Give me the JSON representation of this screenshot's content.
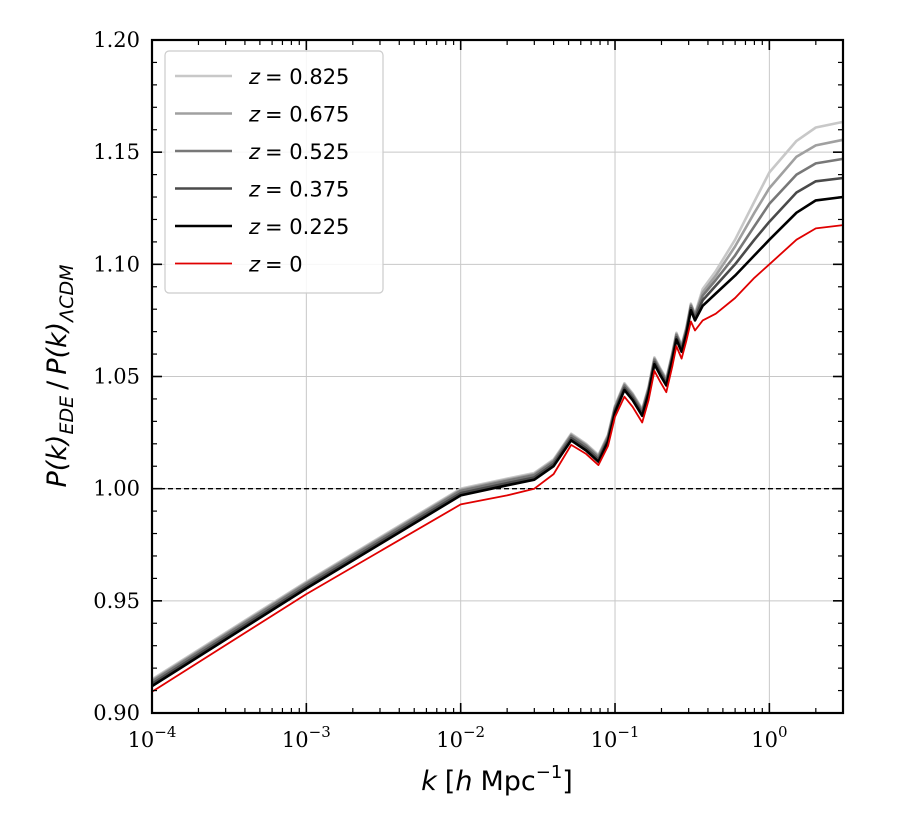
{
  "chart_data": {
    "type": "line",
    "xscale": "log",
    "xlim": [
      0.0001,
      3.0
    ],
    "ylim": [
      0.9,
      1.2
    ],
    "xlabel": {
      "base": "k",
      "bracket_open": "[",
      "unit_h": "h",
      "unit_mpc": "Mpc",
      "exponent": "−1",
      "bracket_close": "]"
    },
    "ylabel": {
      "num": "P(k)",
      "num_sub": "EDE",
      "slash": "/",
      "den": "P(k)",
      "den_sub": "ΛCDM"
    },
    "x_ticks": [
      {
        "value": 0.0001,
        "base": "10",
        "exp": "−4"
      },
      {
        "value": 0.001,
        "base": "10",
        "exp": "−3"
      },
      {
        "value": 0.01,
        "base": "10",
        "exp": "−2"
      },
      {
        "value": 0.1,
        "base": "10",
        "exp": "−1"
      },
      {
        "value": 1,
        "base": "10",
        "exp": "0"
      }
    ],
    "y_ticks": [
      "0.90",
      "0.95",
      "1.00",
      "1.05",
      "1.10",
      "1.15",
      "1.20"
    ],
    "y_tick_values": [
      0.9,
      0.95,
      1.0,
      1.05,
      1.1,
      1.15,
      1.2
    ],
    "grid": true,
    "reference_line": {
      "y": 1.0,
      "style": "dashed",
      "color": "#000000"
    },
    "legend": {
      "position": "top-left",
      "entries": [
        {
          "prefix": "z",
          "value": "= 0.825"
        },
        {
          "prefix": "z",
          "value": "= 0.675"
        },
        {
          "prefix": "z",
          "value": "= 0.525"
        },
        {
          "prefix": "z",
          "value": "= 0.375"
        },
        {
          "prefix": "z",
          "value": "= 0.225"
        },
        {
          "prefix": "z",
          "value": "= 0"
        }
      ]
    },
    "series": [
      {
        "name": "z = 0.825",
        "color": "#c8c8c8",
        "width": 2.6,
        "points": [
          [
            0.0001,
            0.915
          ],
          [
            0.001,
            0.9585
          ],
          [
            0.01,
            1.0
          ],
          [
            0.02,
            1.0045
          ],
          [
            0.03,
            1.007
          ],
          [
            0.04,
            1.013
          ],
          [
            0.052,
            1.0245
          ],
          [
            0.065,
            1.02
          ],
          [
            0.078,
            1.015
          ],
          [
            0.09,
            1.024
          ],
          [
            0.1,
            1.037
          ],
          [
            0.115,
            1.047
          ],
          [
            0.13,
            1.0425
          ],
          [
            0.15,
            1.0355
          ],
          [
            0.165,
            1.0455
          ],
          [
            0.18,
            1.0585
          ],
          [
            0.195,
            1.054
          ],
          [
            0.215,
            1.049
          ],
          [
            0.235,
            1.0605
          ],
          [
            0.25,
            1.0695
          ],
          [
            0.27,
            1.064
          ],
          [
            0.29,
            1.072
          ],
          [
            0.31,
            1.0825
          ],
          [
            0.33,
            1.078
          ],
          [
            0.37,
            1.089
          ],
          [
            0.45,
            1.097
          ],
          [
            0.6,
            1.111
          ],
          [
            0.8,
            1.128
          ],
          [
            1.0,
            1.141
          ],
          [
            1.5,
            1.155
          ],
          [
            2.0,
            1.161
          ],
          [
            3.0,
            1.1635
          ]
        ]
      },
      {
        "name": "z = 0.675",
        "color": "#a0a0a0",
        "width": 2.6,
        "points": [
          [
            0.0001,
            0.9145
          ],
          [
            0.001,
            0.958
          ],
          [
            0.01,
            0.9995
          ],
          [
            0.02,
            1.004
          ],
          [
            0.03,
            1.0065
          ],
          [
            0.04,
            1.0125
          ],
          [
            0.052,
            1.024
          ],
          [
            0.065,
            1.0195
          ],
          [
            0.078,
            1.0145
          ],
          [
            0.09,
            1.0235
          ],
          [
            0.1,
            1.0365
          ],
          [
            0.115,
            1.0465
          ],
          [
            0.13,
            1.042
          ],
          [
            0.15,
            1.035
          ],
          [
            0.165,
            1.045
          ],
          [
            0.18,
            1.058
          ],
          [
            0.195,
            1.0535
          ],
          [
            0.215,
            1.0485
          ],
          [
            0.235,
            1.06
          ],
          [
            0.25,
            1.069
          ],
          [
            0.27,
            1.0635
          ],
          [
            0.29,
            1.0715
          ],
          [
            0.31,
            1.082
          ],
          [
            0.33,
            1.0775
          ],
          [
            0.37,
            1.0875
          ],
          [
            0.45,
            1.095
          ],
          [
            0.6,
            1.108
          ],
          [
            0.8,
            1.123
          ],
          [
            1.0,
            1.134
          ],
          [
            1.5,
            1.148
          ],
          [
            2.0,
            1.153
          ],
          [
            3.0,
            1.1555
          ]
        ]
      },
      {
        "name": "z = 0.525",
        "color": "#787878",
        "width": 2.6,
        "points": [
          [
            0.0001,
            0.914
          ],
          [
            0.001,
            0.9575
          ],
          [
            0.01,
            0.999
          ],
          [
            0.02,
            1.0035
          ],
          [
            0.03,
            1.006
          ],
          [
            0.04,
            1.012
          ],
          [
            0.052,
            1.0235
          ],
          [
            0.065,
            1.019
          ],
          [
            0.078,
            1.014
          ],
          [
            0.09,
            1.023
          ],
          [
            0.1,
            1.036
          ],
          [
            0.115,
            1.046
          ],
          [
            0.13,
            1.0415
          ],
          [
            0.15,
            1.0345
          ],
          [
            0.165,
            1.0445
          ],
          [
            0.18,
            1.0575
          ],
          [
            0.195,
            1.053
          ],
          [
            0.215,
            1.048
          ],
          [
            0.235,
            1.0595
          ],
          [
            0.25,
            1.0685
          ],
          [
            0.27,
            1.063
          ],
          [
            0.29,
            1.071
          ],
          [
            0.31,
            1.0815
          ],
          [
            0.33,
            1.077
          ],
          [
            0.37,
            1.086
          ],
          [
            0.45,
            1.093
          ],
          [
            0.6,
            1.104
          ],
          [
            0.8,
            1.117
          ],
          [
            1.0,
            1.127
          ],
          [
            1.5,
            1.14
          ],
          [
            2.0,
            1.145
          ],
          [
            3.0,
            1.147
          ]
        ]
      },
      {
        "name": "z = 0.375",
        "color": "#4a4a4a",
        "width": 2.6,
        "points": [
          [
            0.0001,
            0.913
          ],
          [
            0.001,
            0.9565
          ],
          [
            0.01,
            0.998
          ],
          [
            0.02,
            1.0025
          ],
          [
            0.03,
            1.005
          ],
          [
            0.04,
            1.011
          ],
          [
            0.052,
            1.0225
          ],
          [
            0.065,
            1.018
          ],
          [
            0.078,
            1.013
          ],
          [
            0.09,
            1.022
          ],
          [
            0.1,
            1.035
          ],
          [
            0.115,
            1.045
          ],
          [
            0.13,
            1.0405
          ],
          [
            0.15,
            1.0335
          ],
          [
            0.165,
            1.0435
          ],
          [
            0.18,
            1.0565
          ],
          [
            0.195,
            1.052
          ],
          [
            0.215,
            1.047
          ],
          [
            0.235,
            1.0585
          ],
          [
            0.25,
            1.0675
          ],
          [
            0.27,
            1.062
          ],
          [
            0.29,
            1.07
          ],
          [
            0.31,
            1.0805
          ],
          [
            0.33,
            1.076
          ],
          [
            0.37,
            1.084
          ],
          [
            0.45,
            1.0905
          ],
          [
            0.6,
            1.1
          ],
          [
            0.8,
            1.111
          ],
          [
            1.0,
            1.119
          ],
          [
            1.5,
            1.132
          ],
          [
            2.0,
            1.137
          ],
          [
            3.0,
            1.1385
          ]
        ]
      },
      {
        "name": "z = 0.225",
        "color": "#000000",
        "width": 2.6,
        "points": [
          [
            0.0001,
            0.912
          ],
          [
            0.001,
            0.9555
          ],
          [
            0.01,
            0.997
          ],
          [
            0.02,
            1.0015
          ],
          [
            0.03,
            1.004
          ],
          [
            0.04,
            1.01
          ],
          [
            0.052,
            1.0215
          ],
          [
            0.065,
            1.017
          ],
          [
            0.078,
            1.012
          ],
          [
            0.09,
            1.021
          ],
          [
            0.1,
            1.034
          ],
          [
            0.115,
            1.044
          ],
          [
            0.13,
            1.0395
          ],
          [
            0.15,
            1.0325
          ],
          [
            0.165,
            1.0425
          ],
          [
            0.18,
            1.0555
          ],
          [
            0.195,
            1.051
          ],
          [
            0.215,
            1.046
          ],
          [
            0.235,
            1.0575
          ],
          [
            0.25,
            1.0665
          ],
          [
            0.27,
            1.061
          ],
          [
            0.29,
            1.069
          ],
          [
            0.31,
            1.0795
          ],
          [
            0.33,
            1.075
          ],
          [
            0.37,
            1.0815
          ],
          [
            0.45,
            1.087
          ],
          [
            0.6,
            1.095
          ],
          [
            0.8,
            1.104
          ],
          [
            1.0,
            1.111
          ],
          [
            1.5,
            1.123
          ],
          [
            2.0,
            1.1285
          ],
          [
            3.0,
            1.13
          ]
        ]
      },
      {
        "name": "z = 0",
        "color": "#e00000",
        "width": 1.8,
        "points": [
          [
            0.0001,
            0.9095
          ],
          [
            0.001,
            0.953
          ],
          [
            0.01,
            0.993
          ],
          [
            0.02,
            0.997
          ],
          [
            0.03,
            1.0
          ],
          [
            0.04,
            1.0065
          ],
          [
            0.052,
            1.0195
          ],
          [
            0.065,
            1.0155
          ],
          [
            0.078,
            1.0105
          ],
          [
            0.09,
            1.019
          ],
          [
            0.1,
            1.032
          ],
          [
            0.115,
            1.041
          ],
          [
            0.13,
            1.0365
          ],
          [
            0.15,
            1.0295
          ],
          [
            0.165,
            1.0395
          ],
          [
            0.18,
            1.0525
          ],
          [
            0.195,
            1.048
          ],
          [
            0.215,
            1.043
          ],
          [
            0.235,
            1.0545
          ],
          [
            0.25,
            1.0635
          ],
          [
            0.27,
            1.058
          ],
          [
            0.29,
            1.066
          ],
          [
            0.31,
            1.0745
          ],
          [
            0.33,
            1.0705
          ],
          [
            0.37,
            1.075
          ],
          [
            0.45,
            1.078
          ],
          [
            0.6,
            1.085
          ],
          [
            0.8,
            1.094
          ],
          [
            1.0,
            1.1
          ],
          [
            1.5,
            1.111
          ],
          [
            2.0,
            1.116
          ],
          [
            3.0,
            1.1175
          ]
        ]
      }
    ]
  }
}
